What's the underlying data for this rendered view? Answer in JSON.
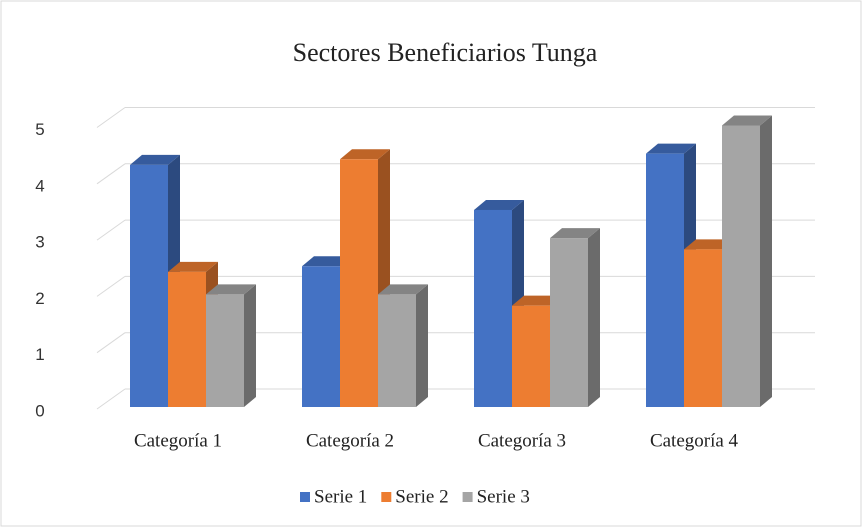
{
  "chart_data": {
    "type": "bar3d",
    "title": "Sectores Beneficiarios Tunga",
    "categories": [
      "Categoría 1",
      "Categoría 2",
      "Categoría 3",
      "Categoría 4"
    ],
    "series": [
      {
        "name": "Serie 1",
        "color": "#4472c4",
        "values": [
          4.3,
          2.5,
          3.5,
          4.5
        ]
      },
      {
        "name": "Serie 2",
        "color": "#ed7d31",
        "values": [
          2.4,
          4.4,
          1.8,
          2.8
        ]
      },
      {
        "name": "Serie 3",
        "color": "#a5a5a5",
        "values": [
          2,
          2,
          3,
          5
        ]
      }
    ],
    "ylim": [
      0,
      5
    ],
    "yticks": [
      0,
      1,
      2,
      3,
      4,
      5
    ],
    "grid": true,
    "legend": "bottom"
  }
}
